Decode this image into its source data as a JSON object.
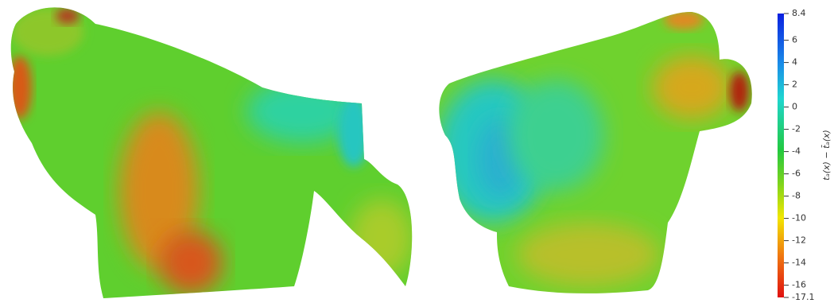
{
  "colorbar": {
    "label": "tₐ(x) − t̄ₐ(x)",
    "range": [
      -17.1,
      8.4
    ],
    "ticks": [
      8.4,
      6,
      4,
      2,
      0,
      -2,
      -4,
      -6,
      -8,
      -10,
      -12,
      -14,
      -16,
      -17.1
    ]
  }
}
